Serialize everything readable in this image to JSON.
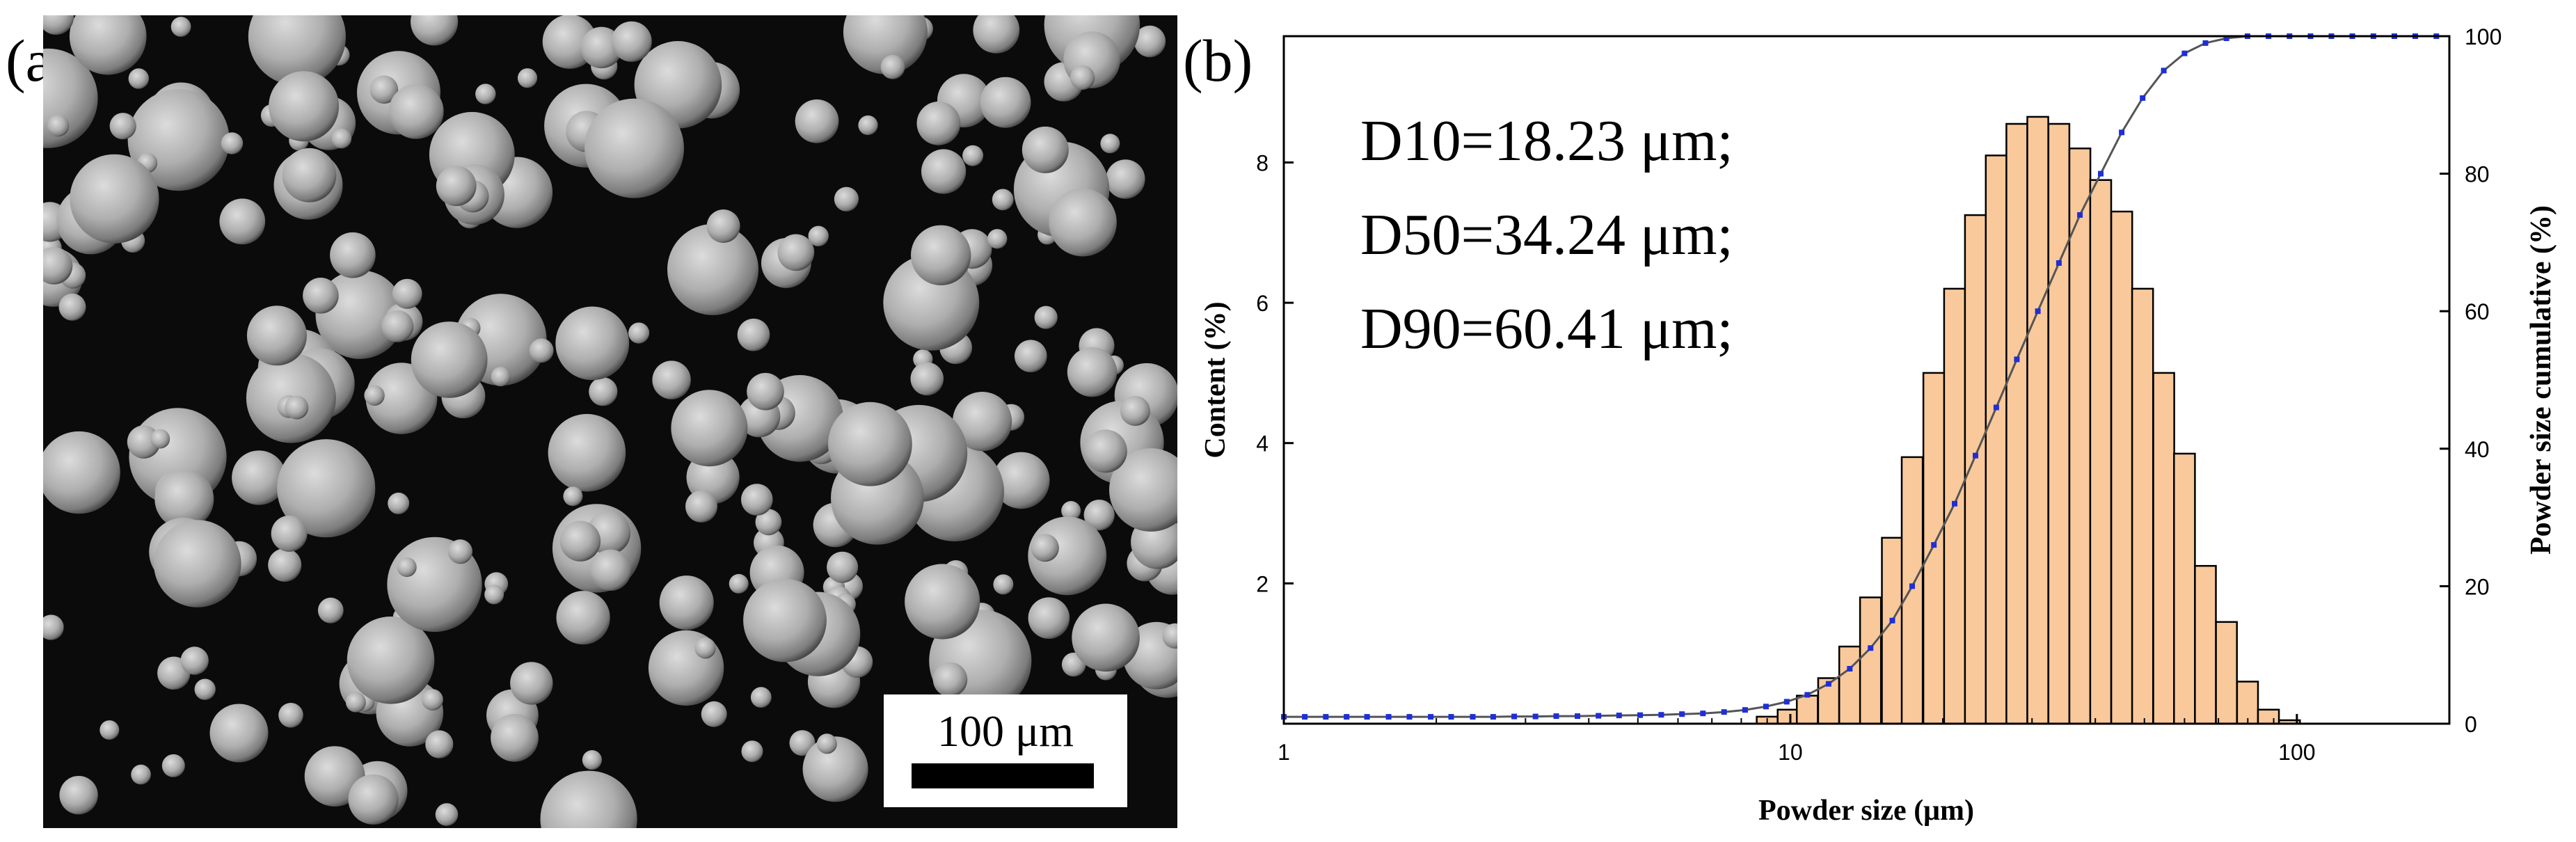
{
  "panels": {
    "a_label": "(a)",
    "b_label": "(b)"
  },
  "sem": {
    "scale_bar_label": "100 μm",
    "background": "#0b0b0b",
    "particle_color": "#b9b9b9"
  },
  "chart_data": {
    "type": "bar",
    "x_scale": "log",
    "xlabel": "Powder size (μm)",
    "ylabel": "Content (%)",
    "y2label": "Powder size cumulative (%)",
    "xlim": [
      1,
      200
    ],
    "ylim": [
      0,
      9.8
    ],
    "y2lim": [
      0,
      100
    ],
    "x_ticks": [
      1,
      10,
      100
    ],
    "y_ticks": [
      2,
      4,
      6,
      8
    ],
    "y2_ticks": [
      0,
      20,
      40,
      60,
      80,
      100
    ],
    "grid": false,
    "annotations": [
      "D10=18.23 μm;",
      "D50=34.24 μm;",
      "D90=60.41 μm;"
    ],
    "bar_fill": "#f9c99b",
    "line_color": "#555555",
    "marker_color": "#1f2fd6",
    "histogram": {
      "sizes": [
        9.0,
        9.9,
        10.8,
        11.9,
        13.1,
        14.4,
        15.9,
        17.4,
        19.2,
        21.1,
        23.2,
        25.5,
        28.0,
        30.8,
        33.9,
        37.3,
        41.0,
        45.1,
        49.6,
        54.6,
        60.0,
        66.0,
        72.6,
        79.9,
        87.9,
        96.7
      ],
      "content": [
        0.1,
        0.2,
        0.4,
        0.65,
        1.1,
        1.8,
        2.65,
        3.8,
        5.0,
        6.2,
        7.25,
        8.1,
        8.55,
        8.65,
        8.55,
        8.2,
        7.75,
        7.3,
        6.2,
        5.0,
        3.85,
        2.25,
        1.45,
        0.6,
        0.2,
        0.05
      ]
    },
    "cumulative": {
      "sizes": [
        1.0,
        1.1,
        1.21,
        1.33,
        1.46,
        1.61,
        1.77,
        1.95,
        2.14,
        2.36,
        2.59,
        2.85,
        3.14,
        3.45,
        3.8,
        4.18,
        4.59,
        5.05,
        5.56,
        6.11,
        6.72,
        7.4,
        8.14,
        8.95,
        9.84,
        10.8,
        11.9,
        13.1,
        14.4,
        15.9,
        17.4,
        19.2,
        21.1,
        23.2,
        25.5,
        28.0,
        30.8,
        33.9,
        37.3,
        41.0,
        45.1,
        49.6,
        54.6,
        60.0,
        66.0,
        72.6,
        79.9,
        87.9,
        96.7,
        106.4,
        117.0,
        128.7,
        141.6,
        155.8,
        171.3,
        188.5
      ],
      "values": [
        1.0,
        1.0,
        1.0,
        1.0,
        1.0,
        1.0,
        1.0,
        1.0,
        1.0,
        1.0,
        1.0,
        1.05,
        1.05,
        1.1,
        1.1,
        1.15,
        1.2,
        1.25,
        1.3,
        1.4,
        1.5,
        1.7,
        2.0,
        2.5,
        3.2,
        4.2,
        5.8,
        8.0,
        11.0,
        15.0,
        20.0,
        26.0,
        32.0,
        39.0,
        46.0,
        53.0,
        60.0,
        67.0,
        74.0,
        80.0,
        86.0,
        91.0,
        95.0,
        97.5,
        99.0,
        99.7,
        100.0,
        100.0,
        100.0,
        100.0,
        100.0,
        100.0,
        100.0,
        100.0,
        100.0,
        100.0
      ]
    }
  }
}
